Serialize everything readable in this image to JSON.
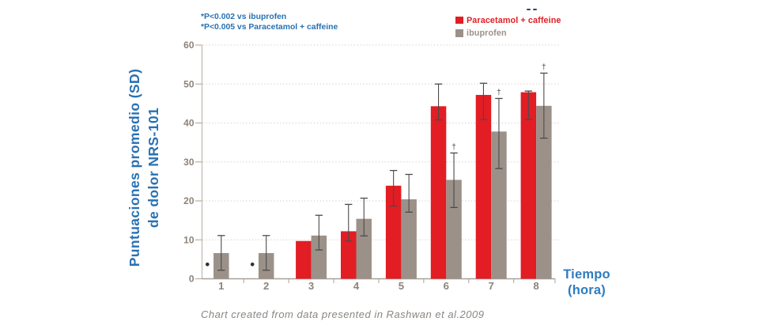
{
  "page": {
    "background": "#ffffff"
  },
  "annotations": {
    "line1": "*P<0.002 vs ibuprofen",
    "line2": "*P<0.005 vs Paracetamol + caffeine"
  },
  "legend": {
    "items": [
      {
        "label": "Paracetamol + caffeine",
        "color": "#e21d23"
      },
      {
        "label": "ibuprofen",
        "color": "#9b9189"
      }
    ]
  },
  "y_axis": {
    "label_line1": "Puntuaciones promedio (SD)",
    "label_line2": "de dolor NRS-101"
  },
  "x_axis": {
    "label_line1": "Tiempo",
    "label_line2": "(hora)"
  },
  "footer": {
    "text": "Chart created from data presented in Rashwan et al.2009"
  },
  "chart_data": {
    "type": "bar",
    "title": "",
    "categories": [
      "1",
      "2",
      "3",
      "4",
      "5",
      "6",
      "7",
      "8"
    ],
    "xlabel": "Tiempo (hora)",
    "ylabel": "Puntuaciones promedio (SD) de dolor NRS-101",
    "ylim": [
      0,
      60
    ],
    "yticks": [
      0,
      10,
      20,
      30,
      40,
      50,
      60
    ],
    "grid": "horizontal dotted",
    "legend_position": "top-right",
    "error_bars": "SD whiskers with end caps",
    "dagger_symbol": "†",
    "dot_marker_symbol": "•",
    "series": [
      {
        "name": "Paracetamol + caffeine",
        "color": "#e21d23",
        "values": [
          null,
          null,
          9.7,
          12.2,
          23.9,
          44.3,
          47.2,
          47.9
        ],
        "err_lo": [
          null,
          null,
          null,
          9.7,
          18.7,
          40.8,
          40.9,
          40.9
        ],
        "err_hi": [
          null,
          null,
          null,
          19.1,
          27.8,
          50.0,
          50.2,
          48.2
        ],
        "dot_markers": [
          3.7,
          3.7,
          null,
          null,
          null,
          null,
          null,
          null
        ]
      },
      {
        "name": "ibuprofen",
        "color": "#9b9189",
        "values": [
          6.6,
          6.6,
          11.1,
          15.4,
          20.4,
          25.4,
          37.8,
          44.4
        ],
        "err_lo": [
          2.2,
          2.2,
          7.4,
          11.0,
          17.1,
          18.3,
          28.3,
          36.1
        ],
        "err_hi": [
          11.1,
          11.1,
          16.3,
          20.7,
          26.8,
          32.3,
          46.3,
          52.8
        ],
        "daggers": [
          false,
          false,
          false,
          false,
          false,
          true,
          true,
          true
        ]
      }
    ]
  },
  "colors": {
    "annotation_text": "#2871b3",
    "ylabel_text": "#2871b3",
    "xlabel_text": "#2e7cbd",
    "tick_label": "#8d8379",
    "grid_line": "#d2cec9",
    "y_axis_line": "#c0b8af",
    "x_axis_line": "#a8a098",
    "tick_mark": "#b0a89f",
    "error_bar": "#4a4b4d",
    "dot_marker": "#2f2f2f",
    "footer_text": "#8b8681",
    "artifact_dash": "#29466b"
  }
}
